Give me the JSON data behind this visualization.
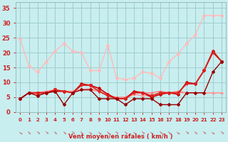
{
  "bg_color": "#c8eef0",
  "grid_color": "#a0cccc",
  "xlabel": "Vent moyen/en rafales ( km/h )",
  "xlim": [
    -0.5,
    23.5
  ],
  "ylim": [
    0,
    37
  ],
  "yticks": [
    0,
    5,
    10,
    15,
    20,
    25,
    30,
    35
  ],
  "xticks": [
    0,
    1,
    2,
    3,
    4,
    5,
    6,
    7,
    8,
    9,
    10,
    11,
    12,
    13,
    14,
    15,
    16,
    17,
    18,
    19,
    20,
    21,
    22,
    23
  ],
  "series": [
    {
      "y": [
        24.5,
        15.5,
        13.5,
        17,
        20.5,
        23,
        20.5,
        20,
        14,
        14,
        22.5,
        11.5,
        11,
        11.5,
        13.5,
        13,
        11.5,
        17,
        19.5,
        23,
        26,
        32.5,
        32.5,
        32.5
      ],
      "color": "#ffbbbb",
      "lw": 1.0,
      "marker": "D",
      "ms": 2.0,
      "zorder": 2
    },
    {
      "y": [
        4.5,
        6.5,
        6.5,
        6.5,
        7.0,
        7.0,
        6.5,
        9.5,
        9.0,
        8.0,
        6.0,
        4.5,
        4.5,
        7.0,
        6.5,
        5.0,
        6.0,
        6.5,
        6.0,
        10.0,
        9.5,
        14.0,
        20.5,
        17.0
      ],
      "color": "#cc0000",
      "lw": 1.2,
      "marker": "D",
      "ms": 2.0,
      "zorder": 4
    },
    {
      "y": [
        4.5,
        6.5,
        6.5,
        7.0,
        7.5,
        7.0,
        7.0,
        7.5,
        7.5,
        7.0,
        5.5,
        5.0,
        5.0,
        6.5,
        6.5,
        6.5,
        7.0,
        6.5,
        7.0,
        6.5,
        6.5,
        6.5,
        6.5,
        6.5
      ],
      "color": "#ff7777",
      "lw": 1.0,
      "marker": "s",
      "ms": 2.0,
      "zorder": 3
    },
    {
      "y": [
        4.5,
        6.5,
        6.0,
        6.5,
        7.0,
        7.0,
        7.0,
        7.5,
        8.0,
        7.0,
        6.0,
        4.5,
        4.5,
        6.0,
        5.5,
        5.5,
        6.5,
        6.5,
        6.5,
        6.5,
        6.5,
        6.5,
        6.5,
        6.5
      ],
      "color": "#ff9999",
      "lw": 1.0,
      "marker": "s",
      "ms": 2.0,
      "zorder": 3
    },
    {
      "y": [
        4.5,
        6.5,
        6.5,
        6.5,
        7.5,
        7.0,
        6.5,
        9.0,
        9.0,
        7.0,
        5.5,
        4.5,
        4.5,
        6.5,
        6.5,
        5.5,
        6.5,
        6.5,
        6.5,
        9.5,
        9.5,
        14.0,
        20.0,
        17.0
      ],
      "color": "#dd2222",
      "lw": 1.2,
      "marker": "v",
      "ms": 2.5,
      "zorder": 4
    },
    {
      "y": [
        4.5,
        6.5,
        5.5,
        6.5,
        7.0,
        2.5,
        6.5,
        7.5,
        7.5,
        4.5,
        4.5,
        4.5,
        2.5,
        4.5,
        4.5,
        4.5,
        2.5,
        2.5,
        2.5,
        6.5,
        6.5,
        6.5,
        13.5,
        17.0
      ],
      "color": "#990000",
      "lw": 1.0,
      "marker": "D",
      "ms": 2.0,
      "zorder": 4
    }
  ],
  "tick_color": "#cc2222",
  "label_color": "#cc2222",
  "tick_fontsize": 5,
  "xlabel_fontsize": 6,
  "ytick_fontsize": 6,
  "arrow_color": "#cc4444",
  "arrow_fontsize": 4.5,
  "arrow_rotations": [
    -40,
    -50,
    -45,
    -45,
    -50,
    -50,
    -45,
    -50,
    -40,
    -40,
    -50,
    -45,
    -50,
    -40,
    -45,
    -40,
    -45,
    -50,
    -40,
    -45,
    -50,
    -45,
    -40,
    -45
  ]
}
